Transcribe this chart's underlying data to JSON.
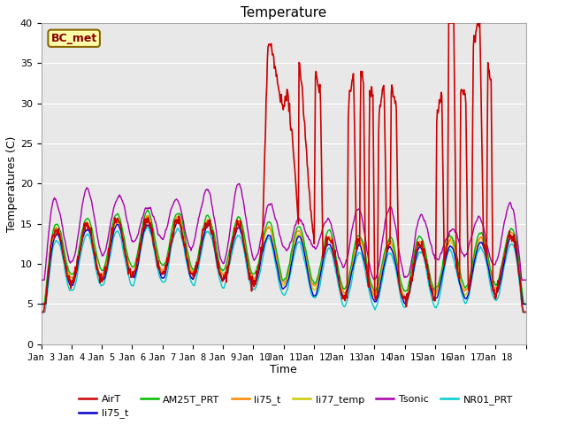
{
  "title": "Temperature",
  "xlabel": "Time",
  "ylabel": "Temperatures (C)",
  "ylim": [
    0,
    40
  ],
  "yticks": [
    0,
    5,
    10,
    15,
    20,
    25,
    30,
    35,
    40
  ],
  "annotation_text": "BC_met",
  "fig_bg_color": "#ffffff",
  "plot_bg_color": "#e8e8e8",
  "xtick_labels": [
    "Jan 3",
    "Jan 4",
    "Jan 5",
    "Jan 6",
    "Jan 7",
    "Jan 8",
    "Jan 9",
    "Jan 10",
    "Jan 11",
    "Jan 12",
    "Jan 13",
    "Jan 14",
    "Jan 15",
    "Jan 16",
    "Jan 17",
    "Jan 18"
  ],
  "series": {
    "AirT": {
      "color": "#cc0000",
      "lw": 1.2
    },
    "li75_t": {
      "color": "#0000cc",
      "lw": 1.0
    },
    "AM25T_PRT": {
      "color": "#00bb00",
      "lw": 1.0
    },
    "li75_t2": {
      "color": "#ff8800",
      "lw": 1.0
    },
    "li77_temp": {
      "color": "#cccc00",
      "lw": 1.0
    },
    "Tsonic": {
      "color": "#aa00aa",
      "lw": 1.0
    },
    "NR01_PRT": {
      "color": "#00cccc",
      "lw": 1.0
    }
  },
  "legend_entries": [
    {
      "label": "AirT",
      "color": "#cc0000"
    },
    {
      "label": "li75_t",
      "color": "#0000cc"
    },
    {
      "label": "AM25T_PRT",
      "color": "#00bb00"
    },
    {
      "label": "li75_t",
      "color": "#ff8800"
    },
    {
      "label": "li77_temp",
      "color": "#cccc00"
    },
    {
      "label": "Tsonic",
      "color": "#aa00aa"
    },
    {
      "label": "NR01_PRT",
      "color": "#00cccc"
    }
  ]
}
